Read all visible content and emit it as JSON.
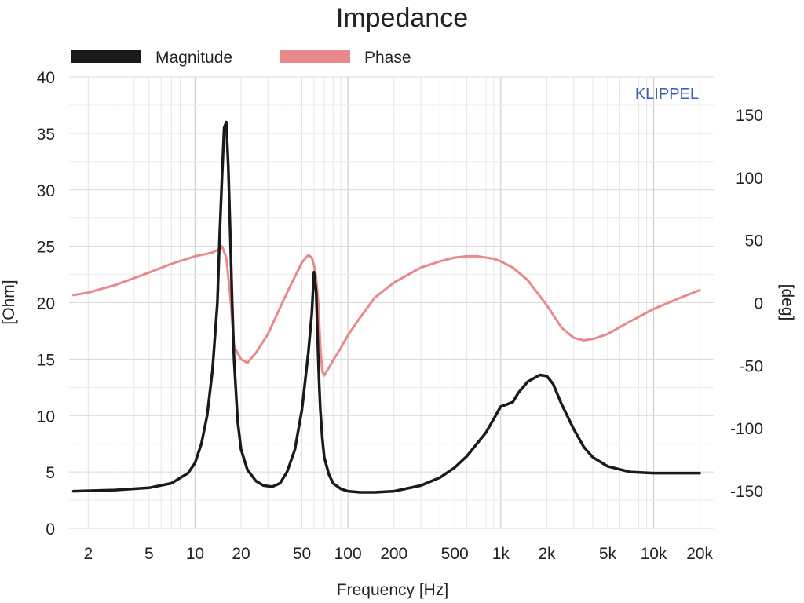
{
  "chart_data": {
    "type": "line",
    "title": "Impedance",
    "watermark": {
      "text": "KLIPPEL",
      "color": "#3a5fb0"
    },
    "xlabel": "Frequency [Hz]",
    "ylabel_left": "[Ohm]",
    "ylabel_right": "[deg]",
    "x_scale": "log",
    "xlim": [
      1.5,
      25000
    ],
    "ylim_left": [
      0,
      40
    ],
    "ylim_right": [
      -180,
      180
    ],
    "grid": true,
    "legend_position": "top",
    "x_ticks": [
      {
        "value": 2,
        "label": "2"
      },
      {
        "value": 5,
        "label": "5"
      },
      {
        "value": 10,
        "label": "10"
      },
      {
        "value": 20,
        "label": "20"
      },
      {
        "value": 50,
        "label": "50"
      },
      {
        "value": 100,
        "label": "100"
      },
      {
        "value": 200,
        "label": "200"
      },
      {
        "value": 500,
        "label": "500"
      },
      {
        "value": 1000,
        "label": "1k"
      },
      {
        "value": 2000,
        "label": "2k"
      },
      {
        "value": 5000,
        "label": "5k"
      },
      {
        "value": 10000,
        "label": "10k"
      },
      {
        "value": 20000,
        "label": "20k"
      }
    ],
    "y_ticks_left": [
      {
        "value": 0,
        "label": "0"
      },
      {
        "value": 5,
        "label": "5"
      },
      {
        "value": 10,
        "label": "10"
      },
      {
        "value": 15,
        "label": "15"
      },
      {
        "value": 20,
        "label": "20"
      },
      {
        "value": 25,
        "label": "25"
      },
      {
        "value": 30,
        "label": "30"
      },
      {
        "value": 35,
        "label": "35"
      },
      {
        "value": 40,
        "label": "40"
      }
    ],
    "y_ticks_right": [
      {
        "value": -150,
        "label": "-150"
      },
      {
        "value": -100,
        "label": "-100"
      },
      {
        "value": -50,
        "label": "-50"
      },
      {
        "value": 0,
        "label": "0"
      },
      {
        "value": 50,
        "label": "50"
      },
      {
        "value": 100,
        "label": "100"
      },
      {
        "value": 150,
        "label": "150"
      }
    ],
    "series": [
      {
        "name": "Magnitude",
        "axis": "left",
        "color": "#1a1a1a",
        "x": [
          1.6,
          3,
          5,
          7,
          9,
          10,
          11,
          12,
          13,
          14,
          14.5,
          15,
          15.5,
          16,
          16.5,
          17,
          17.5,
          18,
          19,
          20,
          22,
          25,
          28,
          32,
          36,
          40,
          45,
          50,
          55,
          58,
          60,
          62,
          63,
          64,
          65,
          66,
          68,
          70,
          75,
          80,
          90,
          100,
          120,
          150,
          200,
          300,
          400,
          500,
          600,
          800,
          1000,
          1100,
          1200,
          1300,
          1500,
          1800,
          2000,
          2200,
          2500,
          3000,
          3500,
          4000,
          5000,
          7000,
          10000,
          15000,
          20000
        ],
        "values": [
          3.3,
          3.4,
          3.6,
          4.0,
          4.9,
          5.8,
          7.5,
          10.0,
          14.0,
          20.0,
          26.0,
          31.0,
          35.5,
          36.0,
          32.0,
          26.0,
          20.0,
          15.0,
          9.5,
          7.0,
          5.2,
          4.2,
          3.8,
          3.7,
          4.0,
          5.0,
          7.0,
          10.5,
          15.5,
          19.0,
          22.7,
          21.0,
          18.0,
          15.0,
          12.5,
          10.5,
          8.0,
          6.3,
          4.8,
          4.0,
          3.5,
          3.3,
          3.2,
          3.2,
          3.3,
          3.8,
          4.5,
          5.4,
          6.4,
          8.5,
          10.8,
          11.0,
          11.2,
          12.0,
          13.0,
          13.6,
          13.5,
          12.8,
          11.0,
          8.8,
          7.2,
          6.3,
          5.5,
          5.0,
          4.9,
          4.9,
          4.9
        ]
      },
      {
        "name": "Phase",
        "axis": "right",
        "color": "#e8898c",
        "x": [
          1.6,
          2,
          3,
          5,
          7,
          10,
          12,
          13,
          14,
          15,
          16,
          17,
          18,
          20,
          22,
          25,
          30,
          40,
          50,
          55,
          58,
          60,
          62,
          64,
          66,
          68,
          70,
          75,
          80,
          90,
          100,
          120,
          150,
          200,
          300,
          400,
          500,
          600,
          700,
          800,
          900,
          1000,
          1200,
          1500,
          2000,
          2500,
          3000,
          3500,
          4000,
          5000,
          7000,
          10000,
          15000,
          20000
        ],
        "values": [
          6,
          8,
          14,
          24,
          31,
          37,
          39,
          40,
          42,
          45,
          36,
          5,
          -35,
          -45,
          -48,
          -40,
          -25,
          8,
          32,
          38,
          36,
          30,
          20,
          0,
          -35,
          -55,
          -58,
          -52,
          -46,
          -36,
          -26,
          -12,
          4,
          16,
          28,
          33,
          36,
          37,
          37,
          36,
          35,
          33,
          28,
          18,
          -2,
          -20,
          -28,
          -30,
          -29,
          -25,
          -15,
          -5,
          4,
          10
        ]
      }
    ]
  }
}
